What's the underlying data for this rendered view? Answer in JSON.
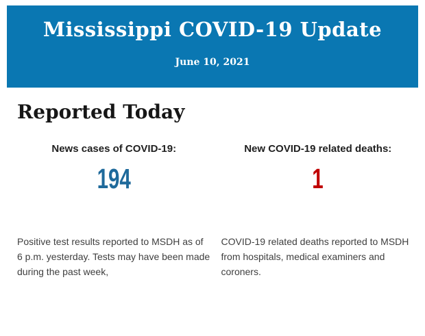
{
  "banner": {
    "title": "Mississippi COVID-19 Update",
    "date": "June 10, 2021",
    "background_color": "#0a77b2",
    "text_color": "#ffffff"
  },
  "section": {
    "heading": "Reported Today"
  },
  "stats": [
    {
      "label": "News cases of COVID-19:",
      "value": "194",
      "value_color": "#1f6a9b",
      "description": "Positive test results reported to MSDH as of 6 p.m. yesterday. Tests may have been made during the past week,"
    },
    {
      "label": "New COVID-19 related deaths:",
      "value": "1",
      "value_color": "#c00000",
      "description": "COVID-19 related deaths reported to MSDH from hospitals, medical examiners and coroners."
    }
  ]
}
